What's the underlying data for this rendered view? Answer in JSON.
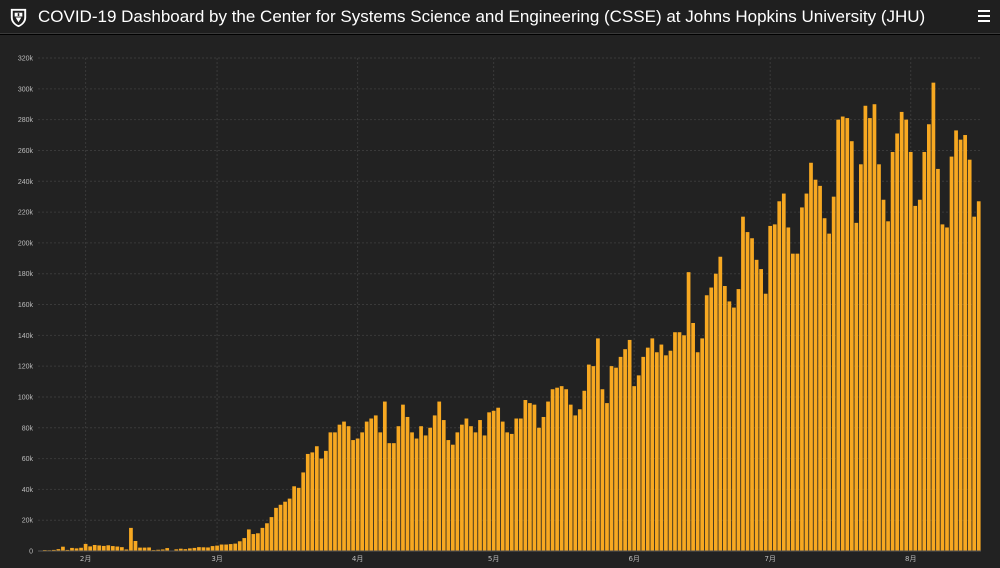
{
  "header": {
    "title": "COVID-19 Dashboard by the Center for Systems Science and Engineering (CSSE) at Johns Hopkins University (JHU)",
    "logo_icon": "jhu-shield-icon",
    "menu_icon": "hamburger-menu-icon"
  },
  "colors": {
    "background": "#000000",
    "header_bg": "#1f1f1f",
    "panel_bg": "#222222",
    "bar": "#f7a821",
    "grid": "#3a3a3a",
    "text": "#ffffff",
    "tick_text": "#bdbdbd"
  },
  "chart_data": {
    "type": "bar",
    "title": "",
    "xlabel": "",
    "ylabel": "",
    "ylim": [
      0,
      320000
    ],
    "y_ticks": [
      0,
      20000,
      40000,
      60000,
      80000,
      100000,
      120000,
      140000,
      160000,
      180000,
      200000,
      220000,
      240000,
      260000,
      280000,
      300000,
      320000
    ],
    "y_tick_labels": [
      "0",
      "20k",
      "40k",
      "60k",
      "80k",
      "100k",
      "120k",
      "140k",
      "160k",
      "180k",
      "200k",
      "220k",
      "240k",
      "260k",
      "280k",
      "300k",
      "320k"
    ],
    "x_tick_labels": [
      {
        "label": "2月",
        "index": 10
      },
      {
        "label": "3月",
        "index": 39
      },
      {
        "label": "4月",
        "index": 70
      },
      {
        "label": "5月",
        "index": 100
      },
      {
        "label": "6月",
        "index": 131
      },
      {
        "label": "7月",
        "index": 161
      },
      {
        "label": "8月",
        "index": 192
      }
    ],
    "grid": true,
    "values": [
      100,
      600,
      500,
      700,
      1200,
      2800,
      700,
      2000,
      1700,
      2100,
      4600,
      3000,
      3900,
      3600,
      3300,
      3700,
      3200,
      2900,
      2500,
      1000,
      15000,
      6500,
      2200,
      2200,
      2300,
      600,
      800,
      1000,
      1900,
      300,
      1100,
      1500,
      1200,
      1700,
      2000,
      2500,
      2400,
      2300,
      3200,
      3500,
      4200,
      4200,
      4500,
      4800,
      6300,
      8400,
      14000,
      11000,
      11500,
      15000,
      18000,
      22000,
      28000,
      30000,
      32000,
      34000,
      42000,
      41000,
      51000,
      63000,
      64000,
      68000,
      60000,
      65000,
      77000,
      77000,
      82000,
      84000,
      81000,
      72000,
      73000,
      77000,
      84000,
      86000,
      88000,
      77000,
      97000,
      70000,
      70000,
      81000,
      95000,
      87000,
      77000,
      73000,
      81000,
      75000,
      80000,
      88000,
      97000,
      85000,
      72000,
      69000,
      77000,
      82000,
      86000,
      81000,
      77000,
      85000,
      75000,
      90000,
      91000,
      93000,
      84000,
      77000,
      76000,
      86000,
      86000,
      98000,
      96000,
      95000,
      80000,
      87000,
      97000,
      105000,
      106000,
      107000,
      105000,
      95000,
      88000,
      92000,
      104000,
      121000,
      120000,
      138000,
      105000,
      96000,
      120000,
      119000,
      126000,
      131000,
      137000,
      107000,
      114000,
      126000,
      132000,
      138000,
      129000,
      134000,
      127000,
      130000,
      142000,
      142000,
      140000,
      181000,
      148000,
      129000,
      138000,
      166000,
      171000,
      180000,
      191000,
      172000,
      162000,
      158000,
      170000,
      217000,
      207000,
      203000,
      189000,
      183000,
      167000,
      211000,
      212000,
      227000,
      232000,
      210000,
      193000,
      193000,
      223000,
      232000,
      252000,
      241000,
      237000,
      216000,
      206000,
      230000,
      280000,
      282000,
      281000,
      266000,
      213000,
      251000,
      289000,
      281000,
      290000,
      251000,
      228000,
      214000,
      259000,
      271000,
      285000,
      280000,
      259000,
      224000,
      228000,
      259000,
      277000,
      304000,
      248000,
      212000,
      210000,
      256000,
      273000,
      267000,
      270000,
      254000,
      217000,
      227000
    ]
  }
}
